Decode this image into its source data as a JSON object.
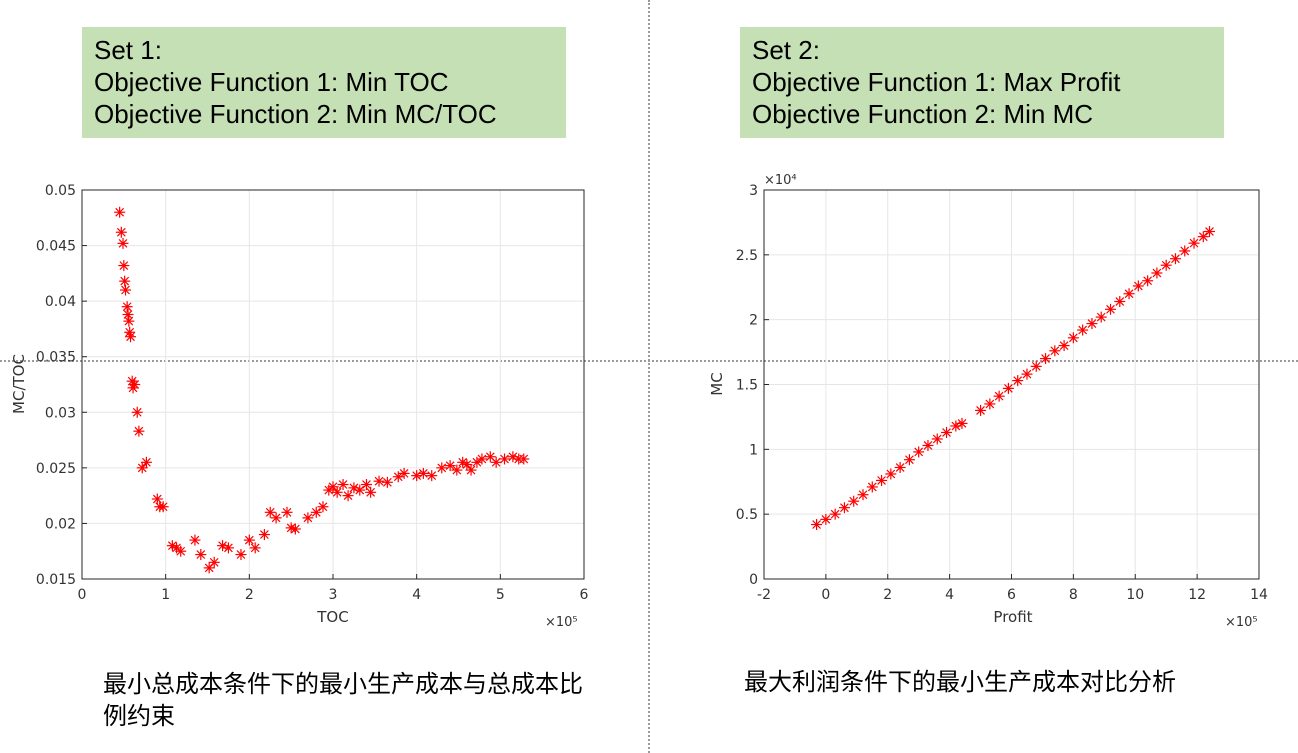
{
  "panels": [
    {
      "set_box": {
        "line1": "Set 1:",
        "line2": "Objective Function 1: Min TOC",
        "line3": "Objective Function 2: Min MC/TOC"
      },
      "caption": "最小总成本条件下的最小生产成本与总成本比例约束"
    },
    {
      "set_box": {
        "line1": "Set 2:",
        "line2": "Objective Function 1: Max Profit",
        "line3": "Objective Function 2: Min MC"
      },
      "caption": "最大利润条件下的最小生产成本对比分析"
    }
  ],
  "colors": {
    "box_fill": "#c5e0b4",
    "marker": "#ff0000",
    "grid": "#e6e6e6",
    "axis": "#262626"
  },
  "chart_data": [
    {
      "type": "scatter",
      "xlabel": "TOC",
      "ylabel": "MC/TOC",
      "x_exponent_label": "×10⁵",
      "xlim": [
        0,
        6
      ],
      "ylim": [
        0.015,
        0.05
      ],
      "xticks": [
        0,
        1,
        2,
        3,
        4,
        5,
        6
      ],
      "yticks": [
        0.015,
        0.02,
        0.025,
        0.03,
        0.035,
        0.04,
        0.045,
        0.05
      ],
      "xtick_labels": [
        "0",
        "1",
        "2",
        "3",
        "4",
        "5",
        "6"
      ],
      "ytick_labels": [
        "0.015",
        "0.02",
        "0.025",
        "0.03",
        "0.035",
        "0.04",
        "0.045",
        "0.05"
      ],
      "grid": true,
      "marker": "asterisk",
      "x": [
        0.45,
        0.47,
        0.49,
        0.5,
        0.51,
        0.52,
        0.54,
        0.55,
        0.56,
        0.57,
        0.58,
        0.6,
        0.61,
        0.63,
        0.66,
        0.68,
        0.72,
        0.77,
        0.9,
        0.93,
        0.97,
        1.08,
        1.13,
        1.18,
        1.35,
        1.42,
        1.52,
        1.58,
        1.68,
        1.75,
        1.9,
        2.0,
        2.07,
        2.18,
        2.25,
        2.32,
        2.45,
        2.5,
        2.55,
        2.7,
        2.8,
        2.88,
        2.95,
        3.0,
        3.05,
        3.12,
        3.18,
        3.25,
        3.32,
        3.4,
        3.45,
        3.55,
        3.65,
        3.78,
        3.85,
        4.0,
        4.08,
        4.18,
        4.3,
        4.4,
        4.48,
        4.55,
        4.6,
        4.65,
        4.72,
        4.78,
        4.88,
        4.95,
        5.05,
        5.15,
        5.22,
        5.28
      ],
      "y": [
        0.048,
        0.0462,
        0.0452,
        0.0432,
        0.0418,
        0.041,
        0.0395,
        0.0388,
        0.0382,
        0.0372,
        0.0368,
        0.0328,
        0.0322,
        0.0325,
        0.03,
        0.0283,
        0.025,
        0.0255,
        0.0222,
        0.0215,
        0.0215,
        0.018,
        0.0178,
        0.0175,
        0.0185,
        0.0172,
        0.016,
        0.0165,
        0.018,
        0.0178,
        0.0172,
        0.0185,
        0.0178,
        0.019,
        0.021,
        0.0205,
        0.021,
        0.0196,
        0.0195,
        0.0205,
        0.021,
        0.0215,
        0.023,
        0.0233,
        0.0228,
        0.0235,
        0.0225,
        0.0232,
        0.023,
        0.0235,
        0.0228,
        0.0238,
        0.0237,
        0.0242,
        0.0245,
        0.0243,
        0.0245,
        0.0243,
        0.025,
        0.0252,
        0.0248,
        0.0255,
        0.0253,
        0.0248,
        0.0255,
        0.0258,
        0.026,
        0.0255,
        0.0258,
        0.026,
        0.0258,
        0.0258
      ]
    },
    {
      "type": "scatter",
      "xlabel": "Profit",
      "ylabel": "MC",
      "x_exponent_label": "×10⁵",
      "y_exponent_label": "×10⁴",
      "xlim": [
        -2,
        14
      ],
      "ylim": [
        0,
        3
      ],
      "xticks": [
        -2,
        0,
        2,
        4,
        6,
        8,
        10,
        12,
        14
      ],
      "yticks": [
        0,
        0.5,
        1,
        1.5,
        2,
        2.5,
        3
      ],
      "xtick_labels": [
        "-2",
        "0",
        "2",
        "4",
        "6",
        "8",
        "10",
        "12",
        "14"
      ],
      "ytick_labels": [
        "0",
        "0.5",
        "1",
        "1.5",
        "2",
        "2.5",
        "3"
      ],
      "grid": true,
      "marker": "asterisk",
      "x": [
        -0.3,
        0.0,
        0.3,
        0.6,
        0.9,
        1.2,
        1.5,
        1.8,
        2.1,
        2.4,
        2.7,
        3.0,
        3.3,
        3.6,
        3.9,
        4.2,
        4.4,
        5.0,
        5.3,
        5.6,
        5.9,
        6.2,
        6.5,
        6.8,
        7.1,
        7.4,
        7.7,
        8.0,
        8.3,
        8.6,
        8.9,
        9.2,
        9.5,
        9.8,
        10.1,
        10.4,
        10.7,
        11.0,
        11.3,
        11.6,
        11.9,
        12.2,
        12.4
      ],
      "y": [
        0.42,
        0.46,
        0.5,
        0.55,
        0.6,
        0.65,
        0.71,
        0.76,
        0.81,
        0.86,
        0.92,
        0.98,
        1.03,
        1.08,
        1.13,
        1.18,
        1.2,
        1.3,
        1.35,
        1.41,
        1.47,
        1.53,
        1.58,
        1.64,
        1.7,
        1.76,
        1.8,
        1.86,
        1.92,
        1.97,
        2.02,
        2.08,
        2.14,
        2.2,
        2.26,
        2.3,
        2.36,
        2.42,
        2.47,
        2.53,
        2.59,
        2.64,
        2.68
      ]
    }
  ]
}
